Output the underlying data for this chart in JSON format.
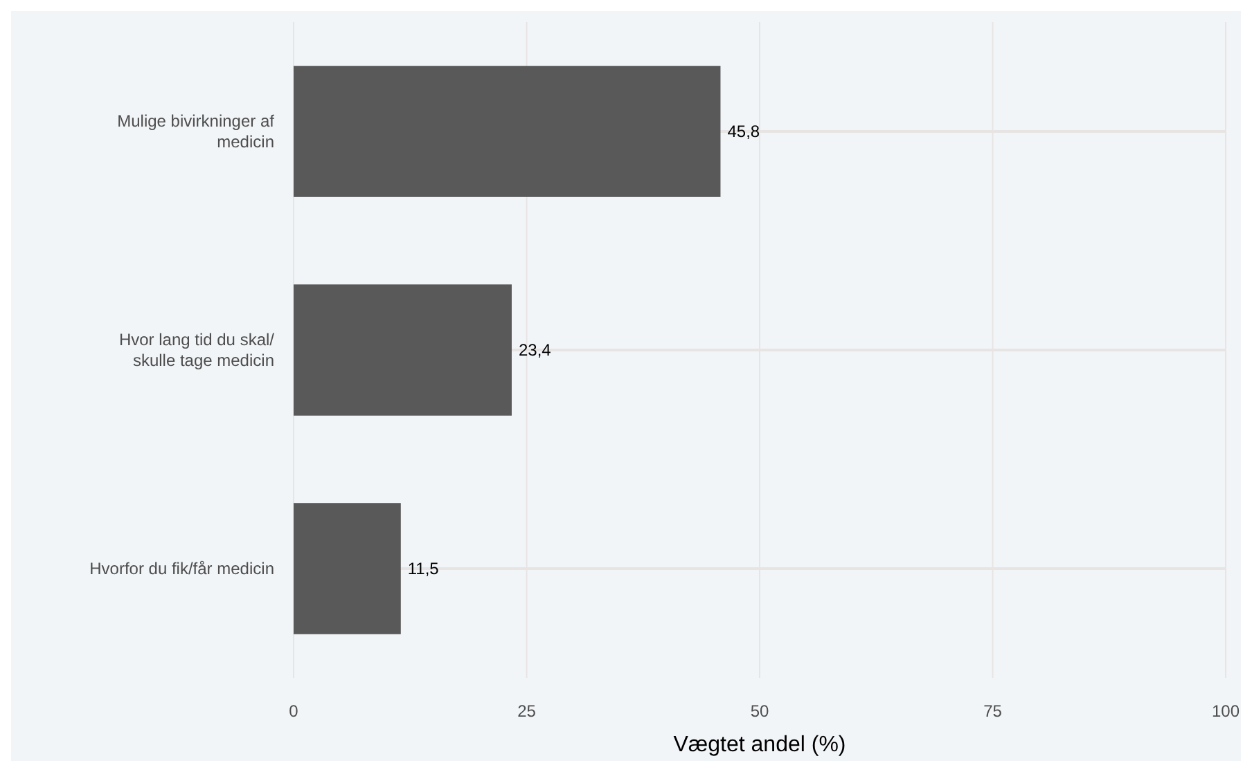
{
  "chart_data": {
    "type": "bar",
    "orientation": "horizontal",
    "xlabel": "Vægtet andel (%)",
    "categories": [
      "Mulige bivirkninger af medicin",
      "Hvor lang tid du skal/ skulle tage medicin",
      "Hvorfor du fik/får medicin"
    ],
    "values": [
      45.8,
      23.4,
      11.5
    ],
    "color": "#595959",
    "value_labels": [
      "45,8",
      "23,4",
      "11,5"
    ],
    "xlim": [
      0,
      100
    ],
    "xticks": [
      0,
      25,
      50,
      75,
      100
    ],
    "grid": true
  }
}
